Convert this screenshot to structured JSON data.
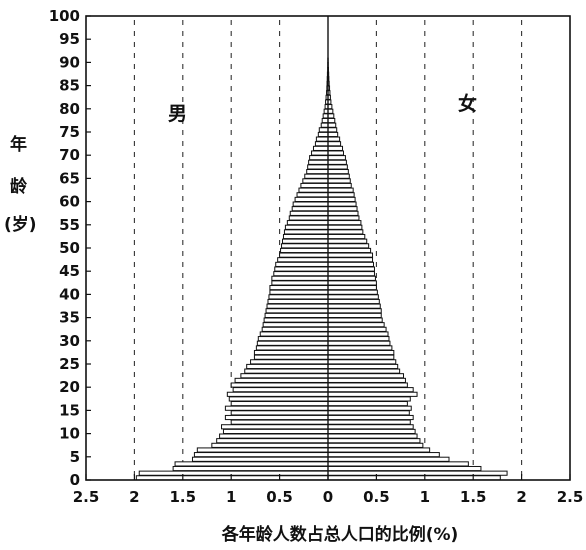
{
  "chart_data": {
    "type": "bar",
    "orientation": "horizontal-population-pyramid",
    "title": "",
    "xlabel": "各年龄人数占总人口的比例(%)",
    "ylabel": "年龄(岁)",
    "ylabel_chars": [
      "年",
      "龄",
      "(岁)"
    ],
    "labels": {
      "male": "男",
      "female": "女"
    },
    "x_ticks": [
      "2.5",
      "2",
      "1.5",
      "1",
      "0.5",
      "0",
      "0.5",
      "1",
      "1.5",
      "2",
      "2.5"
    ],
    "y_ticks": [
      0,
      5,
      10,
      15,
      20,
      25,
      30,
      35,
      40,
      45,
      50,
      55,
      60,
      65,
      70,
      75,
      80,
      85,
      90,
      95,
      100
    ],
    "xlim": [
      -2.5,
      2.5
    ],
    "ylim": [
      0,
      100
    ],
    "grid": "dashed vertical lines at 0.5 intervals",
    "series": [
      {
        "side": "male",
        "ages": [
          0,
          1,
          2,
          3,
          4,
          5,
          6,
          7,
          8,
          9,
          10,
          11,
          12,
          13,
          14,
          15,
          16,
          17,
          18,
          19,
          20,
          21,
          22,
          23,
          24,
          25,
          26,
          27,
          28,
          29,
          30,
          31,
          32,
          33,
          34,
          35,
          36,
          37,
          38,
          39,
          40,
          41,
          42,
          43,
          44,
          45,
          46,
          47,
          48,
          49,
          50,
          51,
          52,
          53,
          54,
          55,
          56,
          57,
          58,
          59,
          60,
          61,
          62,
          63,
          64,
          65,
          66,
          67,
          68,
          69,
          70,
          71,
          72,
          73,
          74,
          75,
          76,
          77,
          78,
          79,
          80,
          81,
          82,
          83,
          84,
          85,
          86,
          87,
          88,
          89,
          90
        ],
        "values": [
          1.98,
          1.95,
          1.6,
          1.58,
          1.4,
          1.38,
          1.35,
          1.2,
          1.15,
          1.12,
          1.08,
          1.1,
          1.0,
          1.06,
          1.0,
          1.06,
          1.0,
          1.02,
          1.04,
          0.98,
          1.0,
          0.96,
          0.9,
          0.86,
          0.84,
          0.8,
          0.76,
          0.76,
          0.74,
          0.73,
          0.72,
          0.7,
          0.68,
          0.67,
          0.66,
          0.65,
          0.64,
          0.63,
          0.62,
          0.61,
          0.6,
          0.6,
          0.58,
          0.58,
          0.56,
          0.55,
          0.54,
          0.52,
          0.5,
          0.49,
          0.48,
          0.47,
          0.46,
          0.45,
          0.44,
          0.42,
          0.4,
          0.39,
          0.37,
          0.36,
          0.34,
          0.32,
          0.3,
          0.28,
          0.26,
          0.24,
          0.22,
          0.21,
          0.2,
          0.19,
          0.17,
          0.15,
          0.13,
          0.12,
          0.1,
          0.09,
          0.07,
          0.06,
          0.05,
          0.04,
          0.03,
          0.025,
          0.02,
          0.015,
          0.012,
          0.01,
          0.008,
          0.006,
          0.004,
          0.003,
          0.002
        ]
      },
      {
        "side": "female",
        "ages": [
          0,
          1,
          2,
          3,
          4,
          5,
          6,
          7,
          8,
          9,
          10,
          11,
          12,
          13,
          14,
          15,
          16,
          17,
          18,
          19,
          20,
          21,
          22,
          23,
          24,
          25,
          26,
          27,
          28,
          29,
          30,
          31,
          32,
          33,
          34,
          35,
          36,
          37,
          38,
          39,
          40,
          41,
          42,
          43,
          44,
          45,
          46,
          47,
          48,
          49,
          50,
          51,
          52,
          53,
          54,
          55,
          56,
          57,
          58,
          59,
          60,
          61,
          62,
          63,
          64,
          65,
          66,
          67,
          68,
          69,
          70,
          71,
          72,
          73,
          74,
          75,
          76,
          77,
          78,
          79,
          80,
          81,
          82,
          83,
          84,
          85,
          86,
          87,
          88,
          89,
          90
        ],
        "values": [
          1.78,
          1.85,
          1.58,
          1.45,
          1.25,
          1.15,
          1.05,
          0.98,
          0.95,
          0.92,
          0.9,
          0.88,
          0.85,
          0.88,
          0.84,
          0.86,
          0.82,
          0.85,
          0.92,
          0.88,
          0.82,
          0.8,
          0.78,
          0.74,
          0.72,
          0.7,
          0.68,
          0.68,
          0.66,
          0.64,
          0.63,
          0.62,
          0.6,
          0.58,
          0.56,
          0.55,
          0.55,
          0.54,
          0.53,
          0.52,
          0.51,
          0.5,
          0.5,
          0.49,
          0.48,
          0.48,
          0.47,
          0.46,
          0.46,
          0.44,
          0.42,
          0.4,
          0.38,
          0.36,
          0.35,
          0.34,
          0.32,
          0.31,
          0.3,
          0.29,
          0.28,
          0.27,
          0.26,
          0.24,
          0.23,
          0.22,
          0.21,
          0.2,
          0.19,
          0.18,
          0.16,
          0.15,
          0.13,
          0.12,
          0.1,
          0.09,
          0.08,
          0.07,
          0.06,
          0.05,
          0.04,
          0.03,
          0.025,
          0.02,
          0.016,
          0.012,
          0.009,
          0.007,
          0.005,
          0.003,
          0.002
        ]
      }
    ]
  }
}
